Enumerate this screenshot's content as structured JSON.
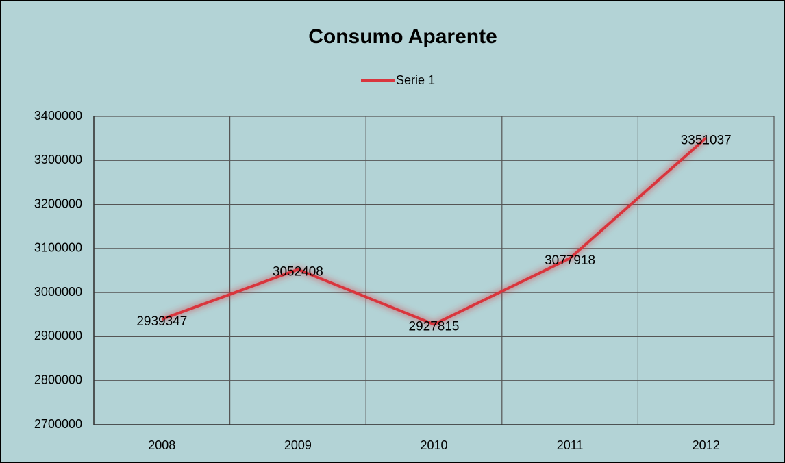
{
  "chart_data": {
    "type": "line",
    "title": "Consumo Aparente",
    "categories": [
      "2008",
      "2009",
      "2010",
      "2011",
      "2012"
    ],
    "series": [
      {
        "name": "Serie 1",
        "color": "#d9363e",
        "values": [
          2939347,
          3052408,
          2927815,
          3077918,
          3351037
        ]
      }
    ],
    "ylim": [
      2700000,
      3400000
    ],
    "yticks": [
      2700000,
      2800000,
      2900000,
      3000000,
      3100000,
      3200000,
      3300000,
      3400000
    ],
    "grid": true,
    "legend": "top",
    "data_labels": true
  }
}
